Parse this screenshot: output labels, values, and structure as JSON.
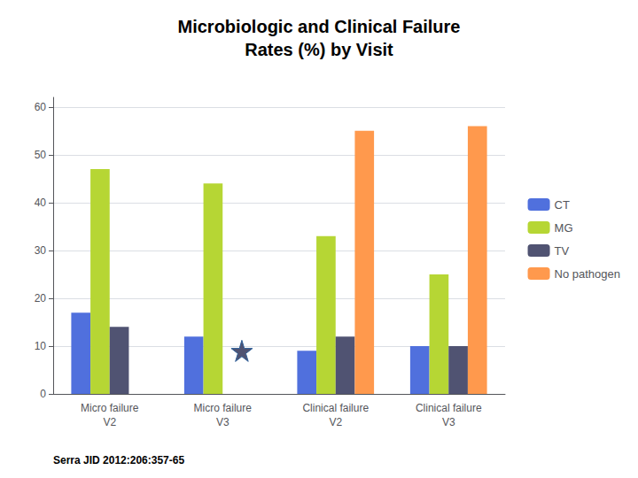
{
  "chart_data": {
    "type": "bar",
    "title": "Microbiologic and Clinical Failure\nRates (%) by Visit",
    "categories": [
      "Micro failure\nV2",
      "Micro failure\nV3",
      "Clinical failure\nV2",
      "Clinical failure\nV3"
    ],
    "series": [
      {
        "name": "CT",
        "values": [
          17,
          12,
          9,
          10
        ]
      },
      {
        "name": "MG",
        "values": [
          47,
          44,
          33,
          25
        ]
      },
      {
        "name": "TV",
        "values": [
          14,
          0,
          12,
          10
        ],
        "star_values": [
          null,
          9,
          null,
          null
        ]
      },
      {
        "name": "No pathogen",
        "values": [
          0,
          0,
          55,
          56
        ]
      }
    ],
    "ylim": [
      0,
      62
    ],
    "yticks": [
      0,
      10,
      20,
      30,
      40,
      50,
      60
    ],
    "grid": true,
    "legend": "right",
    "annotations": [
      "Serra JID 2012:206:357-65"
    ]
  }
}
